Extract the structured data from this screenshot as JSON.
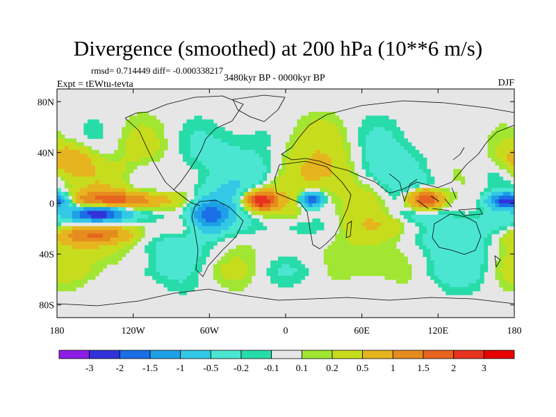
{
  "chart_data": {
    "type": "heatmap",
    "title": "Divergence (smoothed) at 200 hPa (10**6 m/s)",
    "stats": "rmsd= 0.714449 diff= -0.000338217",
    "experiment": "Expt = tEWtu-tevta",
    "period": "3480kyr BP - 0000kyr BP",
    "season": "DJF",
    "projection": "cylindrical equidistant, longitude 180 to 180, latitude 90S to 90N",
    "xlim": [
      -180,
      180
    ],
    "ylim": [
      -90,
      90
    ],
    "x_ticks": [
      {
        "value": -180,
        "label": "180"
      },
      {
        "value": -120,
        "label": "120W"
      },
      {
        "value": -60,
        "label": "60W"
      },
      {
        "value": 0,
        "label": "0"
      },
      {
        "value": 60,
        "label": "60E"
      },
      {
        "value": 120,
        "label": "120E"
      },
      {
        "value": 180,
        "label": "180"
      }
    ],
    "y_ticks": [
      {
        "value": 80,
        "label": "80N"
      },
      {
        "value": 40,
        "label": "40N"
      },
      {
        "value": 0,
        "label": "0"
      },
      {
        "value": -40,
        "label": "40S"
      },
      {
        "value": -80,
        "label": "80S"
      }
    ],
    "colorbar": {
      "levels": [
        -3,
        -2,
        -1.5,
        -1,
        -0.5,
        -0.2,
        -0.1,
        0.1,
        0.2,
        0.5,
        1,
        1.5,
        2,
        3
      ],
      "labels": [
        "-3",
        "-2",
        "-1.5",
        "-1",
        "-0.5",
        "-0.2",
        "-0.1",
        "0.1",
        "0.2",
        "0.5",
        "1",
        "1.5",
        "2",
        "3"
      ],
      "colors": [
        "#8c1ee6",
        "#3232dc",
        "#1a6ee6",
        "#1ea0e6",
        "#32c8e6",
        "#4be6d2",
        "#28dcaa",
        "#e6e6e6",
        "#a0e632",
        "#c8dc1e",
        "#e6b41e",
        "#e68c1e",
        "#e6641e",
        "#e6321e",
        "#e60000"
      ]
    },
    "features": [
      {
        "name": "central Pacific divergence band",
        "lon": -130,
        "lat": 2,
        "rx": 40,
        "ry": 7,
        "value": 1.6
      },
      {
        "name": "equatorial east Pacific convergence core",
        "lon": -148,
        "lat": -8,
        "rx": 22,
        "ry": 7,
        "value": -3.2
      },
      {
        "name": "equatorial west Pacific convergence",
        "lon": 175,
        "lat": 2,
        "rx": 14,
        "ry": 6,
        "value": -2.5
      },
      {
        "name": "tropical Atlantic divergence",
        "lon": -20,
        "lat": 2,
        "rx": 12,
        "ry": 7,
        "value": 2.6
      },
      {
        "name": "equatorial Africa convergence",
        "lon": 20,
        "lat": 3,
        "rx": 8,
        "ry": 6,
        "value": -2.2
      },
      {
        "name": "Maritime continent divergence",
        "lon": 110,
        "lat": 3,
        "rx": 14,
        "ry": 8,
        "value": 2.4
      },
      {
        "name": "South America convergence",
        "lon": -60,
        "lat": -10,
        "rx": 14,
        "ry": 12,
        "value": -1.8
      },
      {
        "name": "South Pacific divergence band",
        "lon": -150,
        "lat": -25,
        "rx": 30,
        "ry": 7,
        "value": 1.3
      },
      {
        "name": "North Pacific divergence",
        "lon": -170,
        "lat": 35,
        "rx": 18,
        "ry": 12,
        "value": 1.2
      }
    ]
  }
}
